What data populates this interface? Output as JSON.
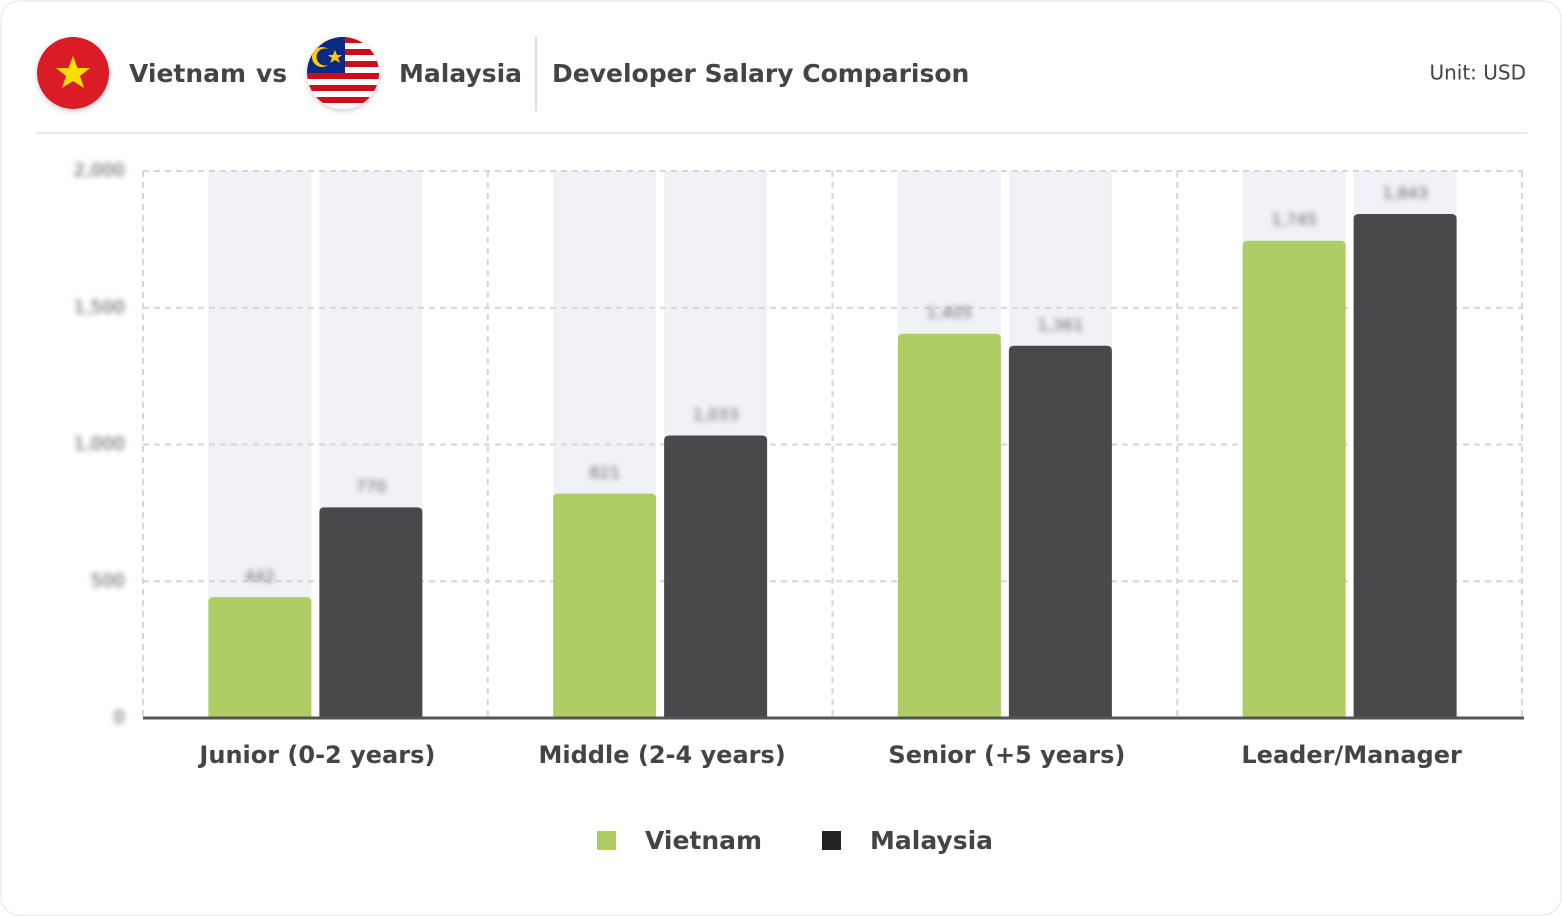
{
  "chart_data": {
    "type": "bar",
    "title": "Developer Salary Comparison",
    "unit_label": "Unit: USD",
    "comparison": {
      "left": "Vietnam",
      "connector": "vs",
      "right": "Malaysia"
    },
    "categories": [
      "Junior (0-2 years)",
      "Middle (2-4 years)",
      "Senior (+5 years)",
      "Leader/Manager"
    ],
    "series": [
      {
        "name": "Vietnam",
        "color": "#aecd64",
        "values": [
          442,
          821,
          1405,
          1745
        ],
        "value_labels": [
          "442",
          "821",
          "1,405",
          "1,745"
        ]
      },
      {
        "name": "Malaysia",
        "color": "#48494b",
        "values": [
          770,
          1033,
          1361,
          1843
        ],
        "value_labels": [
          "770",
          "1,033",
          "1,361",
          "1,843"
        ]
      }
    ],
    "ylim": [
      0,
      2000
    ],
    "yticks": [
      0,
      500,
      {
        "value": 1000,
        "label": "1,000"
      },
      {
        "value": 1500,
        "label": "1,500"
      },
      {
        "value": 2000,
        "label": "2,000"
      }
    ],
    "grid": true,
    "legend": "bottom"
  }
}
